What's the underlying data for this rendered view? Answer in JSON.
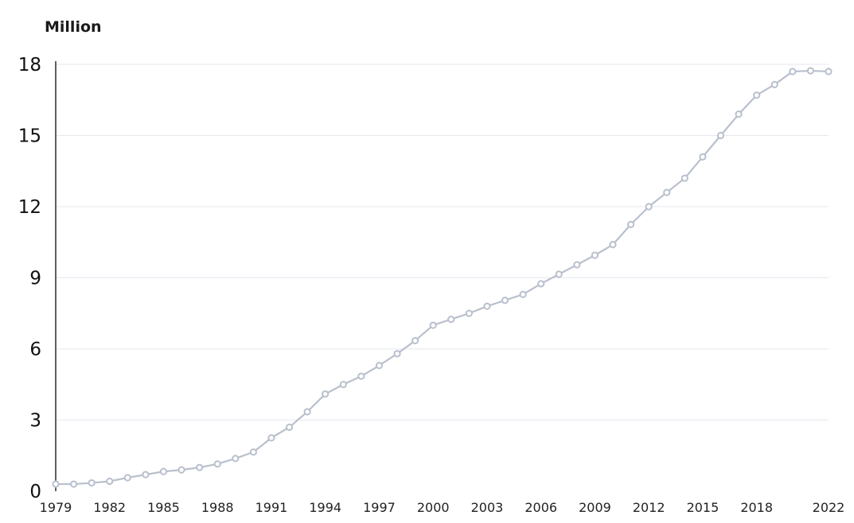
{
  "chart_data": {
    "type": "line",
    "title": "",
    "ylabel": "Million",
    "xlabel": "",
    "ylim": [
      0,
      18
    ],
    "yticks": [
      "0",
      "3",
      "6",
      "9",
      "12",
      "15",
      "18"
    ],
    "xlim": [
      1979,
      2022
    ],
    "xticks": [
      "1979",
      "1982",
      "1985",
      "1988",
      "1991",
      "1994",
      "1997",
      "2000",
      "2003",
      "2006",
      "2009",
      "2012",
      "2015",
      "2018",
      "2022"
    ],
    "grid": "horizontal",
    "legend": "none",
    "color": "#b9c0cd",
    "x": [
      1979,
      1980,
      1981,
      1982,
      1983,
      1984,
      1985,
      1986,
      1987,
      1988,
      1989,
      1990,
      1991,
      1992,
      1993,
      1994,
      1995,
      1996,
      1997,
      1998,
      1999,
      2000,
      2001,
      2002,
      2003,
      2004,
      2005,
      2006,
      2007,
      2008,
      2009,
      2010,
      2011,
      2012,
      2013,
      2014,
      2015,
      2016,
      2017,
      2018,
      2019,
      2020,
      2021,
      2022
    ],
    "values": [
      0.3,
      0.3,
      0.35,
      0.42,
      0.57,
      0.7,
      0.83,
      0.9,
      1.0,
      1.15,
      1.38,
      1.65,
      2.25,
      2.7,
      3.35,
      4.1,
      4.5,
      4.85,
      5.3,
      5.8,
      6.35,
      7.0,
      7.25,
      7.5,
      7.8,
      8.05,
      8.3,
      8.75,
      9.15,
      9.55,
      9.95,
      10.4,
      11.25,
      12.0,
      12.6,
      13.2,
      14.1,
      15.0,
      15.9,
      16.7,
      17.15,
      17.7,
      17.73,
      17.7
    ]
  }
}
